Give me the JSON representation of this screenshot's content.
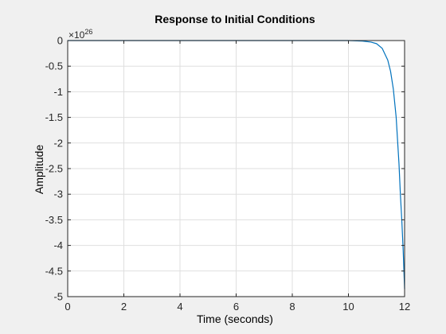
{
  "chart_data": {
    "type": "line",
    "title": "Response to Initial Conditions",
    "xlabel": "Time (seconds)",
    "ylabel": "Amplitude",
    "y_multiplier_base": "×10",
    "y_multiplier_exponent": "26",
    "xlim": [
      0,
      12
    ],
    "ylim": [
      -5,
      0
    ],
    "x_ticks": [
      0,
      2,
      4,
      6,
      8,
      10,
      12
    ],
    "x_tick_labels": [
      "0",
      "2",
      "4",
      "6",
      "8",
      "10",
      "12"
    ],
    "y_ticks": [
      0,
      -0.5,
      -1,
      -1.5,
      -2,
      -2.5,
      -3,
      -3.5,
      -4,
      -4.5,
      -5
    ],
    "y_tick_labels": [
      "0",
      "-0.5",
      "-1",
      "-1.5",
      "-2",
      "-2.5",
      "-3",
      "-3.5",
      "-4",
      "-4.5",
      "-5"
    ],
    "grid": true,
    "line_color": "#0072bd",
    "series": [
      {
        "x": [
          0,
          2,
          4,
          6,
          8,
          10,
          10.5,
          10.8,
          11.0,
          11.2,
          11.4,
          11.5,
          11.6,
          11.7,
          11.8,
          11.85,
          11.9,
          11.95,
          12.0
        ],
        "y": [
          0,
          0,
          0,
          0,
          0,
          0,
          -0.01,
          -0.03,
          -0.06,
          -0.15,
          -0.38,
          -0.6,
          -0.95,
          -1.5,
          -2.4,
          -3.0,
          -3.5,
          -4.1,
          -4.85
        ]
      }
    ]
  }
}
